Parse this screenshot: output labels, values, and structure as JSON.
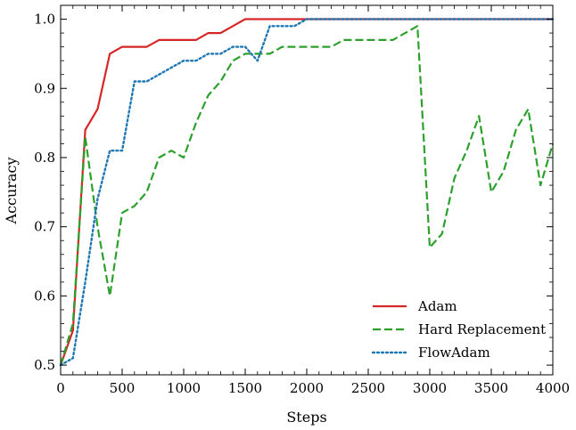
{
  "chart_data": {
    "type": "line",
    "title": "",
    "xlabel": "Steps",
    "ylabel": "Accuracy",
    "xlim": [
      0,
      4000
    ],
    "ylim": [
      0.486,
      1.02
    ],
    "xticks": [
      0,
      500,
      1000,
      1500,
      2000,
      2500,
      3000,
      3500,
      4000
    ],
    "yticks": [
      0.5,
      0.6,
      0.7,
      0.8,
      0.9,
      1.0
    ],
    "xtick_labels": [
      "0",
      "500",
      "1000",
      "1500",
      "2000",
      "2500",
      "3000",
      "3500",
      "4000"
    ],
    "ytick_labels": [
      "0.5",
      "0.6",
      "0.7",
      "0.8",
      "0.9",
      "1.0"
    ],
    "grid": false,
    "legend_position": "bottom-right",
    "series": [
      {
        "name": "Adam",
        "color": "#d62728",
        "style": "solid",
        "x": [
          0,
          100,
          200,
          300,
          400,
          500,
          600,
          700,
          800,
          900,
          1000,
          1100,
          1200,
          1300,
          1400,
          1500,
          2000,
          2500,
          3000,
          3500,
          4000
        ],
        "y": [
          0.5,
          0.55,
          0.84,
          0.87,
          0.95,
          0.96,
          0.96,
          0.96,
          0.97,
          0.97,
          0.97,
          0.97,
          0.98,
          0.98,
          0.99,
          1.0,
          1.0,
          1.0,
          1.0,
          1.0,
          1.0
        ]
      },
      {
        "name": "Hard Replacement",
        "color": "#2ca02c",
        "style": "dashed",
        "x": [
          0,
          100,
          200,
          300,
          400,
          500,
          600,
          700,
          800,
          900,
          1000,
          1100,
          1200,
          1300,
          1400,
          1500,
          1600,
          1700,
          1800,
          1900,
          2000,
          2100,
          2200,
          2300,
          2400,
          2500,
          2600,
          2700,
          2800,
          2900,
          3000,
          3100,
          3200,
          3300,
          3400,
          3500,
          3600,
          3700,
          3800,
          3900,
          4000
        ],
        "y": [
          0.5,
          0.56,
          0.83,
          0.7,
          0.6,
          0.72,
          0.73,
          0.75,
          0.8,
          0.81,
          0.8,
          0.85,
          0.89,
          0.91,
          0.94,
          0.95,
          0.95,
          0.95,
          0.96,
          0.96,
          0.96,
          0.96,
          0.96,
          0.97,
          0.97,
          0.97,
          0.97,
          0.97,
          0.98,
          0.99,
          0.67,
          0.69,
          0.77,
          0.81,
          0.86,
          0.75,
          0.78,
          0.84,
          0.87,
          0.76,
          0.82
        ]
      },
      {
        "name": "FlowAdam",
        "color": "#1f77b4",
        "style": "dotted",
        "x": [
          0,
          100,
          200,
          300,
          400,
          500,
          600,
          700,
          800,
          900,
          1000,
          1100,
          1200,
          1300,
          1400,
          1500,
          1600,
          1700,
          1800,
          1900,
          2000,
          2500,
          3000,
          3500,
          4000
        ],
        "y": [
          0.5,
          0.51,
          0.62,
          0.74,
          0.81,
          0.81,
          0.91,
          0.91,
          0.92,
          0.93,
          0.94,
          0.94,
          0.95,
          0.95,
          0.96,
          0.96,
          0.94,
          0.99,
          0.99,
          0.99,
          1.0,
          1.0,
          1.0,
          1.0,
          1.0
        ]
      }
    ]
  }
}
